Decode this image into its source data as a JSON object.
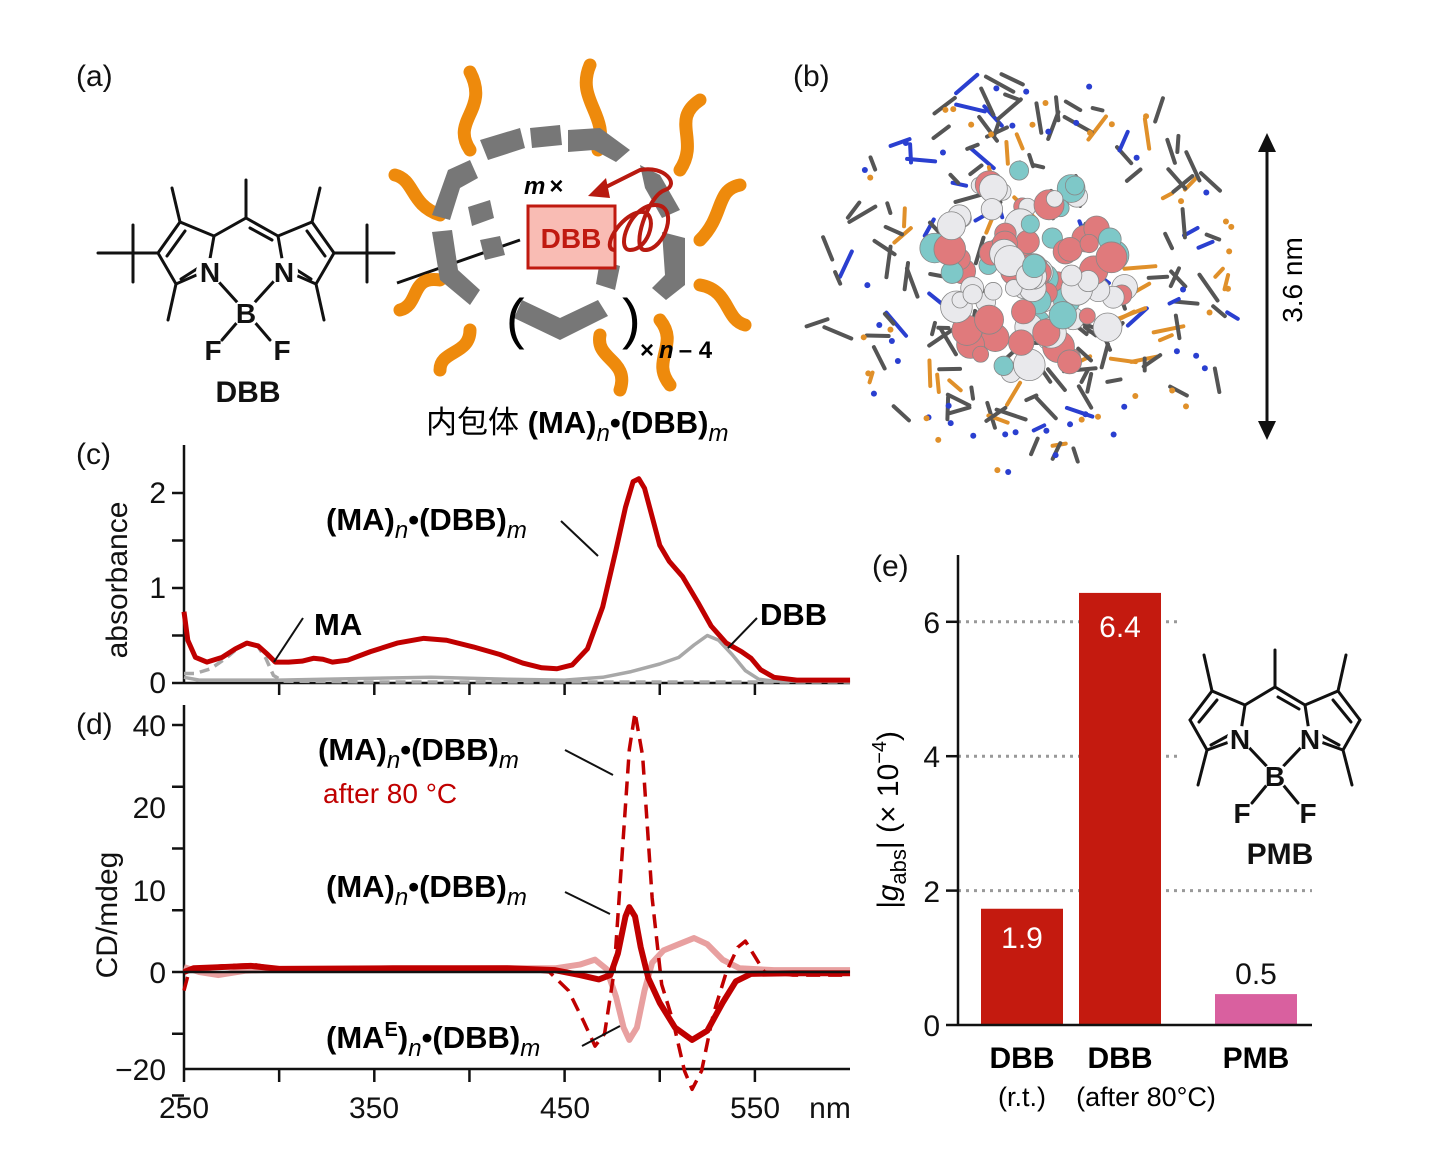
{
  "panels": {
    "a": "(a)",
    "b": "(b)",
    "c": "(c)",
    "d": "(d)",
    "e": "(e)"
  },
  "panel_a": {
    "dbb_name": "DBB",
    "atoms": {
      "N": "N",
      "B": "B",
      "F": "F"
    },
    "guest_box": "DBB",
    "m_times": "m",
    "times_sign": "×",
    "open_paren": "(",
    "close_paren": ")",
    "times_n_minus_4": {
      "times": "×",
      "n": "n",
      "rest": "– 4"
    },
    "caption": {
      "prefix": "内包体 ",
      "a": "(MA)",
      "n": "n",
      "b": "•(DBB)",
      "m": "m"
    },
    "colors": {
      "frame": "#777777",
      "chains": "#ee8a0c",
      "guest": "#c01a10",
      "guest_fill": "#f9bcb4"
    }
  },
  "panel_b": {
    "scale_label": "3.6 nm"
  },
  "chart_data": [
    {
      "id": "c",
      "type": "line",
      "ylabel": "absorbance",
      "xlim": [
        250,
        600
      ],
      "ylim": [
        0,
        2.4
      ],
      "yticks": [
        "0",
        "1",
        "2"
      ],
      "annotations": {
        "complex": {
          "a": "(MA)",
          "n": "n",
          "b": "•(DBB)",
          "m": "m"
        },
        "ma": "MA",
        "dbb": "DBB"
      },
      "series": [
        {
          "name": "(MA)n•(DBB)m",
          "color": "#c00000",
          "style": "solid",
          "points": [
            [
              250,
              0.75
            ],
            [
              252,
              0.45
            ],
            [
              256,
              0.27
            ],
            [
              262,
              0.22
            ],
            [
              270,
              0.27
            ],
            [
              277,
              0.36
            ],
            [
              283,
              0.42
            ],
            [
              289,
              0.39
            ],
            [
              294,
              0.3
            ],
            [
              298,
              0.22
            ],
            [
              305,
              0.22
            ],
            [
              312,
              0.23
            ],
            [
              318,
              0.26
            ],
            [
              323,
              0.25
            ],
            [
              328,
              0.22
            ],
            [
              336,
              0.24
            ],
            [
              348,
              0.33
            ],
            [
              362,
              0.42
            ],
            [
              376,
              0.47
            ],
            [
              388,
              0.45
            ],
            [
              402,
              0.38
            ],
            [
              416,
              0.3
            ],
            [
              428,
              0.21
            ],
            [
              438,
              0.16
            ],
            [
              446,
              0.15
            ],
            [
              454,
              0.19
            ],
            [
              462,
              0.36
            ],
            [
              470,
              0.8
            ],
            [
              477,
              1.4
            ],
            [
              482,
              1.85
            ],
            [
              486,
              2.12
            ],
            [
              489,
              2.15
            ],
            [
              492,
              2.05
            ],
            [
              496,
              1.75
            ],
            [
              500,
              1.45
            ],
            [
              505,
              1.28
            ],
            [
              512,
              1.12
            ],
            [
              520,
              0.85
            ],
            [
              527,
              0.6
            ],
            [
              535,
              0.42
            ],
            [
              543,
              0.33
            ],
            [
              548,
              0.26
            ],
            [
              553,
              0.14
            ],
            [
              560,
              0.06
            ],
            [
              572,
              0.03
            ],
            [
              600,
              0.03
            ]
          ]
        },
        {
          "name": "MA",
          "color": "#a8a8a8",
          "style": "dashed",
          "points": [
            [
              250,
              0.1
            ],
            [
              256,
              0.1
            ],
            [
              264,
              0.15
            ],
            [
              272,
              0.26
            ],
            [
              279,
              0.38
            ],
            [
              284,
              0.42
            ],
            [
              289,
              0.38
            ],
            [
              293,
              0.26
            ],
            [
              297,
              0.08
            ],
            [
              302,
              0.02
            ],
            [
              350,
              0.01
            ],
            [
              600,
              0.01
            ]
          ]
        },
        {
          "name": "DBB",
          "color": "#a8a8a8",
          "style": "solid",
          "points": [
            [
              250,
              0.06
            ],
            [
              258,
              0.03
            ],
            [
              300,
              0.03
            ],
            [
              350,
              0.05
            ],
            [
              380,
              0.06
            ],
            [
              420,
              0.04
            ],
            [
              450,
              0.03
            ],
            [
              470,
              0.06
            ],
            [
              485,
              0.12
            ],
            [
              500,
              0.2
            ],
            [
              510,
              0.27
            ],
            [
              518,
              0.4
            ],
            [
              525,
              0.5
            ],
            [
              531,
              0.45
            ],
            [
              538,
              0.3
            ],
            [
              545,
              0.13
            ],
            [
              552,
              0.04
            ],
            [
              560,
              0.02
            ],
            [
              600,
              0.02
            ]
          ]
        }
      ]
    },
    {
      "id": "d",
      "type": "line",
      "ylabel": "CD/mdeg",
      "xlabel": "nm",
      "xlim": [
        250,
        600
      ],
      "ylim": [
        -20,
        45
      ],
      "xticks": [
        "250",
        "350",
        "450",
        "550"
      ],
      "yticks": [
        "−20",
        "0",
        "10",
        "20",
        "40"
      ],
      "annotations": {
        "heated": {
          "a": "(MA)",
          "n": "n",
          "b": "•(DBB)",
          "m": "m",
          "note": "after 80 °C"
        },
        "complex": {
          "a": "(MA)",
          "n": "n",
          "b": "•(DBB)",
          "m": "m"
        },
        "enantiomer": {
          "a": "(MA",
          "sup": "E",
          "a2": ")",
          "n": "n",
          "b": "•(DBB)",
          "m": "m"
        }
      },
      "series": [
        {
          "name": "(MAE)n•(DBB)m",
          "color": "#e8a0a0",
          "style": "solid",
          "points": [
            [
              250,
              0.8
            ],
            [
              258,
              0
            ],
            [
              268,
              -0.5
            ],
            [
              282,
              0.2
            ],
            [
              300,
              0.4
            ],
            [
              360,
              0.5
            ],
            [
              420,
              0.6
            ],
            [
              445,
              0.6
            ],
            [
              458,
              1.2
            ],
            [
              466,
              2
            ],
            [
              472,
              0.5
            ],
            [
              477,
              -4
            ],
            [
              481,
              -9
            ],
            [
              484,
              -11
            ],
            [
              488,
              -9
            ],
            [
              492,
              -3
            ],
            [
              496,
              1.5
            ],
            [
              502,
              3.5
            ],
            [
              510,
              4.5
            ],
            [
              518,
              5.5
            ],
            [
              525,
              4.5
            ],
            [
              533,
              2
            ],
            [
              542,
              0.6
            ],
            [
              560,
              0.3
            ],
            [
              600,
              0.3
            ]
          ]
        },
        {
          "name": "(MA)n•(DBB)m",
          "color": "#c00000",
          "style": "solid",
          "points": [
            [
              250,
              0
            ],
            [
              255,
              0.6
            ],
            [
              270,
              0.8
            ],
            [
              285,
              1
            ],
            [
              300,
              0.5
            ],
            [
              360,
              0.6
            ],
            [
              420,
              0.6
            ],
            [
              445,
              0.3
            ],
            [
              458,
              -0.5
            ],
            [
              468,
              -1.2
            ],
            [
              474,
              -0.5
            ],
            [
              478,
              3
            ],
            [
              482,
              9
            ],
            [
              484,
              10.5
            ],
            [
              487,
              9
            ],
            [
              490,
              4
            ],
            [
              494,
              -1
            ],
            [
              500,
              -5
            ],
            [
              508,
              -9
            ],
            [
              517,
              -11
            ],
            [
              525,
              -9.5
            ],
            [
              533,
              -5
            ],
            [
              540,
              -1.5
            ],
            [
              548,
              -0.3
            ],
            [
              570,
              -0.2
            ],
            [
              600,
              -0.2
            ]
          ]
        },
        {
          "name": "(MA)n•(DBB)m after 80 °C",
          "color": "#c00000",
          "style": "dashed",
          "points": [
            [
              250,
              -3
            ],
            [
              253,
              0.5
            ],
            [
              270,
              1
            ],
            [
              287,
              1.2
            ],
            [
              300,
              0.5
            ],
            [
              360,
              0.6
            ],
            [
              420,
              0.6
            ],
            [
              442,
              0
            ],
            [
              452,
              -3
            ],
            [
              460,
              -8
            ],
            [
              466,
              -12
            ],
            [
              471,
              -10
            ],
            [
              476,
              0
            ],
            [
              480,
              18
            ],
            [
              484,
              36
            ],
            [
              487,
              42
            ],
            [
              491,
              35
            ],
            [
              496,
              12
            ],
            [
              501,
              -2
            ],
            [
              507,
              -8
            ],
            [
              513,
              -16
            ],
            [
              517,
              -19
            ],
            [
              522,
              -16
            ],
            [
              528,
              -7
            ],
            [
              535,
              0
            ],
            [
              541,
              4
            ],
            [
              545,
              5
            ],
            [
              549,
              3
            ],
            [
              555,
              0
            ],
            [
              570,
              -0.5
            ],
            [
              600,
              -0.5
            ]
          ]
        }
      ]
    },
    {
      "id": "e",
      "type": "bar",
      "ylabel": {
        "pre": "|g",
        "sub": "abs",
        "mid": "| (× 10",
        "sup": "−4",
        "post": ")"
      },
      "ylim": [
        0,
        7
      ],
      "yticks": [
        "0",
        "2",
        "4",
        "6"
      ],
      "grid": "dotted at 2, 4, 6",
      "categories": [
        {
          "name": "DBB",
          "sub": "(r.t.)"
        },
        {
          "name": "DBB",
          "sub": "(after 80°C)"
        },
        {
          "name": "PMB",
          "sub": ""
        }
      ],
      "values": [
        1.9,
        6.4,
        0.5
      ],
      "value_labels": [
        "1.9",
        "6.4",
        "0.5"
      ],
      "colors": [
        "#c41a0f",
        "#c41a0f",
        "#d9609f"
      ],
      "inset": {
        "name": "PMB",
        "atoms": {
          "N": "N",
          "B": "B",
          "F": "F"
        }
      }
    }
  ]
}
